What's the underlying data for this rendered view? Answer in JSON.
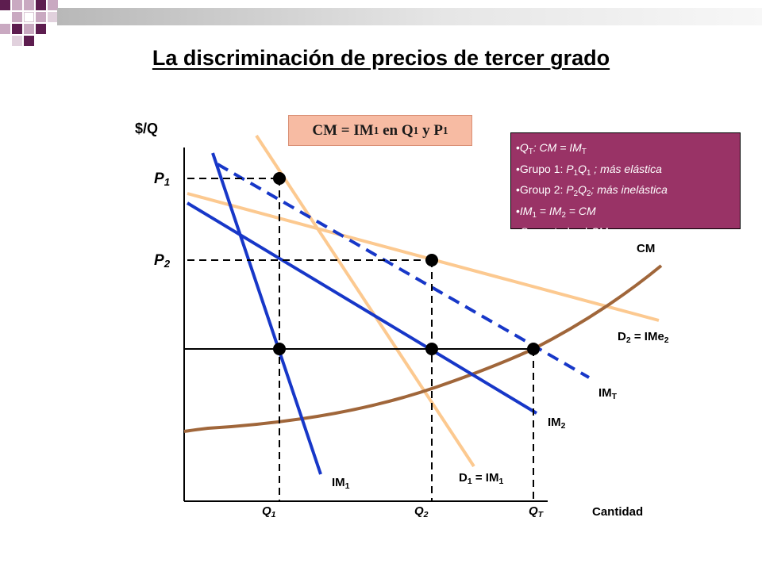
{
  "title": "La discriminación de precios de tercer grado",
  "y_axis_label": "$/Q",
  "x_axis_label": "Cantidad",
  "equation_box": {
    "a": "CM = IM",
    "a_sub": "1",
    "b": " en Q",
    "b_sub": "1",
    "c": " y P",
    "c_sub": "1"
  },
  "price_labels": {
    "p1": "P",
    "p1_sub": "1",
    "p2": "P",
    "p2_sub": "2"
  },
  "quantity_labels": {
    "q1": "Q",
    "q1_sub": "1",
    "q2": "Q",
    "q2_sub": "2",
    "qt": "Q",
    "qt_sub": "T"
  },
  "curve_labels": {
    "cm": "CM",
    "d2": "D",
    "d2_sub": "2",
    "d2_rest": " = IMe",
    "d2_rest_sub": "2",
    "imt": "IM",
    "imt_sub": "T",
    "im2": "IM",
    "im2_sub": "2",
    "d1": "D",
    "d1_sub": "1",
    "d1_rest": " = IM",
    "d1_rest_sub": "1",
    "im1": "IM",
    "im1_sub": "1"
  },
  "info_box": {
    "bullet": "•",
    "line1": {
      "a": "Q",
      "a_sub": "T",
      "b": ": CM = IM",
      "b_sub": "T"
    },
    "line2": {
      "a": "Grupo 1: ",
      "b": "P",
      "b_sub": "1",
      "c": "Q",
      "c_sub": "1",
      "d": " ; más elástica"
    },
    "line3": {
      "a": "Group 2: ",
      "b": "P",
      "b_sub": "2",
      "c": "Q",
      "c_sub": "2",
      "d": "; más inelástica"
    },
    "line4": {
      "a": "IM",
      "a_sub": "1",
      "b": " = IM",
      "b_sub": "2",
      "c": " = CM"
    },
    "line5": {
      "a": "Q",
      "a_sub": "T",
      "b": " controla el ",
      "c": "CM"
    }
  },
  "colors": {
    "demand": "#fcc990",
    "marginal_revenue": "#1737c8",
    "marginal_cost": "#a0663a",
    "info_box_bg": "#993366",
    "equation_box_bg": "#f7bba3",
    "decoration": "#5d1d4f"
  }
}
